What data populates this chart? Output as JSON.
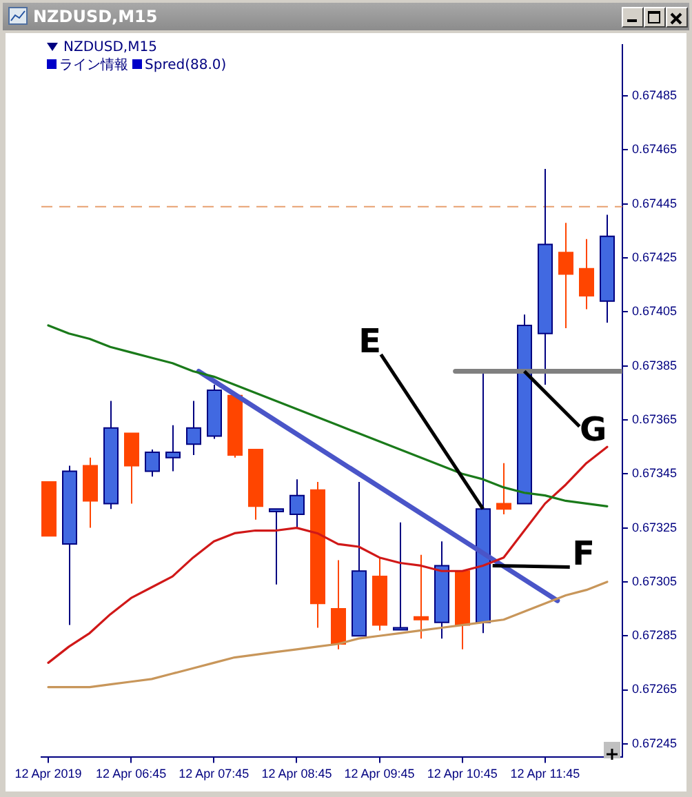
{
  "chart_data": {
    "type": "candlestick",
    "title": "NZDUSD,M15",
    "subtitle": "NZDUSD,M15",
    "x": [
      "2019-04-12T05:45",
      "2019-04-12T06:00",
      "2019-04-12T06:15",
      "2019-04-12T06:30",
      "2019-04-12T06:45",
      "2019-04-12T07:00",
      "2019-04-12T07:15",
      "2019-04-12T07:30",
      "2019-04-12T07:45",
      "2019-04-12T08:00",
      "2019-04-12T08:15",
      "2019-04-12T08:30",
      "2019-04-12T08:45",
      "2019-04-12T09:00",
      "2019-04-12T09:15",
      "2019-04-12T09:30",
      "2019-04-12T09:45",
      "2019-04-12T10:00",
      "2019-04-12T10:15",
      "2019-04-12T10:30",
      "2019-04-12T10:45",
      "2019-04-12T11:00",
      "2019-04-12T11:15",
      "2019-04-12T11:30",
      "2019-04-12T11:45",
      "2019-04-12T12:00",
      "2019-04-12T12:15",
      "2019-04-12T12:30"
    ],
    "ohlc": [
      [
        0.67342,
        0.67342,
        0.67322,
        0.67322
      ],
      [
        0.67319,
        0.67348,
        0.67289,
        0.67346
      ],
      [
        0.67348,
        0.67351,
        0.67325,
        0.67335
      ],
      [
        0.67334,
        0.67372,
        0.67332,
        0.67362
      ],
      [
        0.6736,
        0.6736,
        0.67334,
        0.67348
      ],
      [
        0.67346,
        0.67354,
        0.67344,
        0.67353
      ],
      [
        0.67351,
        0.67363,
        0.67346,
        0.67353
      ],
      [
        0.67356,
        0.67372,
        0.67352,
        0.67362
      ],
      [
        0.67359,
        0.67378,
        0.67358,
        0.67376
      ],
      [
        0.67374,
        0.67375,
        0.67351,
        0.67352
      ],
      [
        0.67354,
        0.67354,
        0.67328,
        0.67333
      ],
      [
        0.67331,
        0.67332,
        0.67304,
        0.67332
      ],
      [
        0.6733,
        0.67343,
        0.67325,
        0.67337
      ],
      [
        0.67339,
        0.67342,
        0.67288,
        0.67297
      ],
      [
        0.67295,
        0.67313,
        0.6728,
        0.67282
      ],
      [
        0.67285,
        0.67342,
        0.67285,
        0.67309
      ],
      [
        0.67307,
        0.67314,
        0.67287,
        0.67289
      ],
      [
        0.67288,
        0.67327,
        0.67288,
        0.67288
      ],
      [
        0.67292,
        0.67315,
        0.67284,
        0.67291
      ],
      [
        0.6729,
        0.6732,
        0.67284,
        0.67311
      ],
      [
        0.67309,
        0.67309,
        0.6728,
        0.67289
      ],
      [
        0.6729,
        0.67383,
        0.67286,
        0.67332
      ],
      [
        0.67334,
        0.67349,
        0.6733,
        0.67332
      ],
      [
        0.67334,
        0.67404,
        0.67334,
        0.674
      ],
      [
        0.67397,
        0.67458,
        0.67378,
        0.6743
      ],
      [
        0.67427,
        0.67438,
        0.67399,
        0.67419
      ],
      [
        0.67421,
        0.67432,
        0.67406,
        0.67411
      ],
      [
        0.67409,
        0.67441,
        0.67401,
        0.67433
      ]
    ],
    "colors": [
      "#ff4500",
      "#4169e1",
      "#ff4500",
      "#4169e1",
      "#ff4500",
      "#4169e1",
      "#4169e1",
      "#4169e1",
      "#4169e1",
      "#ff4500",
      "#ff4500",
      "#4169e1",
      "#4169e1",
      "#ff4500",
      "#ff4500",
      "#4169e1",
      "#ff4500",
      "#4169e1",
      "#ff4500",
      "#4169e1",
      "#ff4500",
      "#4169e1",
      "#ff4500",
      "#4169e1",
      "#4169e1",
      "#ff4500",
      "#ff4500",
      "#4169e1"
    ],
    "series": [
      {
        "type": "line",
        "color": "#1a7a1a",
        "values": [
          0.674,
          0.67397,
          0.67395,
          0.67392,
          0.6739,
          0.67388,
          0.67386,
          0.67383,
          0.67381,
          0.67378,
          0.67375,
          0.67372,
          0.67369,
          0.67366,
          0.67363,
          0.6736,
          0.67357,
          0.67354,
          0.67351,
          0.67348,
          0.67345,
          0.67343,
          0.6734,
          0.67338,
          0.67337,
          0.67335,
          0.67334,
          0.67333
        ]
      },
      {
        "type": "line",
        "color": "#d01818",
        "values": [
          0.67275,
          0.67281,
          0.67286,
          0.67293,
          0.67299,
          0.67303,
          0.67307,
          0.67314,
          0.6732,
          0.67323,
          0.67324,
          0.67324,
          0.67325,
          0.67323,
          0.67319,
          0.67318,
          0.67314,
          0.67312,
          0.67311,
          0.67309,
          0.67309,
          0.67311,
          0.67314,
          0.67324,
          0.67334,
          0.67341,
          0.67349,
          0.67355
        ]
      },
      {
        "type": "line",
        "color": "#c8965a",
        "values": [
          0.67266,
          0.67266,
          0.67266,
          0.67267,
          0.67268,
          0.67269,
          0.67271,
          0.67273,
          0.67275,
          0.67277,
          0.67278,
          0.67279,
          0.6728,
          0.67281,
          0.67282,
          0.67284,
          0.67285,
          0.67286,
          0.67287,
          0.67288,
          0.67289,
          0.6729,
          0.67291,
          0.67294,
          0.67297,
          0.673,
          0.67302,
          0.67305
        ]
      },
      {
        "type": "line",
        "color": "#4a55c8",
        "x": [
          "2019-04-12T07:34",
          "2019-04-12T11:54"
        ],
        "values": [
          0.67383,
          0.67298
        ]
      },
      {
        "type": "line",
        "color": "#808080",
        "x": [
          "2019-04-12T10:40",
          "2019-04-12T12:41"
        ],
        "values": [
          0.67383,
          0.67383
        ]
      }
    ],
    "ref_lines": [
      {
        "axis": "y",
        "value": 0.67444,
        "color": "#e8a070",
        "line_style": "dashed"
      }
    ],
    "annotations": [
      "ライン情報",
      "Spred(88.0)",
      {
        "text": "E",
        "x": "2019-04-12T11:00",
        "y": 0.67332
      },
      {
        "text": "F",
        "x": "2019-04-12T11:07",
        "y": 0.67311
      },
      {
        "text": "G",
        "x": "2019-04-12T11:30",
        "y": 0.67383
      }
    ],
    "marker": "none",
    "grid": false,
    "legend": false,
    "xlim": [
      "2019-04-12T05:40",
      "2019-04-12T12:41"
    ],
    "xticks": [
      {
        "value": "2019-04-12T05:45",
        "label": "12 Apr 2019"
      },
      {
        "value": "2019-04-12T06:45",
        "label": "12 Apr 06:45"
      },
      {
        "value": "2019-04-12T07:45",
        "label": "12 Apr 07:45"
      },
      {
        "value": "2019-04-12T08:45",
        "label": "12 Apr 08:45"
      },
      {
        "value": "2019-04-12T09:45",
        "label": "12 Apr 09:45"
      },
      {
        "value": "2019-04-12T10:45",
        "label": "12 Apr 10:45"
      },
      {
        "value": "2019-04-12T11:45",
        "label": "12 Apr 11:45"
      }
    ],
    "ylim": [
      0.6724,
      0.67504
    ],
    "yticks": [
      0.67245,
      0.67265,
      0.67285,
      0.67305,
      0.67325,
      0.67345,
      0.67365,
      0.67385,
      0.67405,
      0.67425,
      0.67445,
      0.67465,
      0.67485
    ]
  }
}
